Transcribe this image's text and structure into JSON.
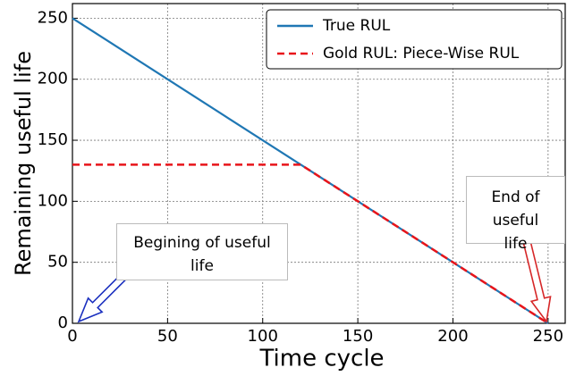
{
  "chart_data": {
    "type": "line",
    "xlabel": "Time cycle",
    "ylabel": "Remaining useful life",
    "xlim": [
      0,
      259
    ],
    "ylim": [
      0,
      262
    ],
    "xticks": [
      0,
      50,
      100,
      150,
      200,
      250
    ],
    "yticks": [
      0,
      50,
      100,
      150,
      200,
      250
    ],
    "grid": true,
    "legend": "upper right",
    "series": [
      {
        "name": "True RUL",
        "color": "#1f77b4",
        "style": "solid",
        "x": [
          0,
          250
        ],
        "values": [
          250,
          0
        ]
      },
      {
        "name": "Gold RUL: Piece-Wise RUL",
        "color": "#e8141a",
        "style": "dashed",
        "x": [
          0,
          120,
          250
        ],
        "values": [
          130,
          130,
          0
        ]
      }
    ],
    "annotations": [
      {
        "text": "Begining of useful life",
        "color": "#1a2fbf"
      },
      {
        "text": "End of useful life",
        "color": "#d62728"
      }
    ]
  }
}
